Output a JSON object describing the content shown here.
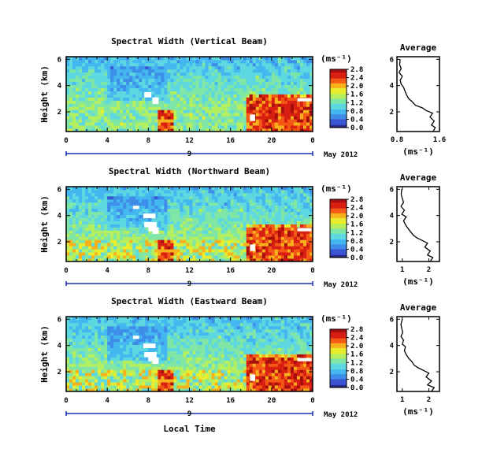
{
  "colors": {
    "colormap": [
      "#000000",
      "#2b2a8e",
      "#3a55d4",
      "#3e8de8",
      "#45b7f0",
      "#5ed8e0",
      "#7fe6a6",
      "#b4ef5f",
      "#e9ed2c",
      "#f7b11b",
      "#f45a16",
      "#d81f12",
      "#a90e0e"
    ],
    "axis_blue": "#1a2fb0",
    "frame": "#000000"
  },
  "xlabel": "Local Time",
  "date_label": "May 2012",
  "chart_data": [
    {
      "type": "heatmap",
      "title": "Spectral Width (Vertical Beam)",
      "ylabel": "Height (km)",
      "x_range": [
        0,
        24
      ],
      "x_ticks": [
        "0",
        "4",
        "8",
        "12",
        "16",
        "20",
        "0"
      ],
      "day_marker": "9",
      "y_range": [
        0.5,
        6.2
      ],
      "y_ticks": [
        {
          "v": 2,
          "t": "2"
        },
        {
          "v": 4,
          "t": "4"
        },
        {
          "v": 6,
          "t": "6"
        }
      ],
      "colorbar": {
        "unit": "(ms⁻¹)",
        "range": [
          0,
          2.8
        ],
        "ticks": [
          "0.0",
          "0.4",
          "0.8",
          "1.2",
          "1.6",
          "2.0",
          "2.4",
          "2.8"
        ]
      },
      "average": {
        "title": "Average",
        "xlabel": "(ms⁻¹)",
        "x_range": [
          0.8,
          1.6
        ],
        "x_ticks": [
          {
            "v": 0.8,
            "t": "0.8"
          },
          {
            "v": 1.6,
            "t": "1.6"
          }
        ],
        "heights": [
          0.5,
          0.8,
          1.0,
          1.3,
          1.6,
          1.9,
          2.1,
          2.3,
          2.5,
          2.8,
          3.0,
          3.3,
          3.6,
          3.9,
          4.1,
          4.4,
          4.7,
          5.0,
          5.3,
          5.6,
          6.0
        ],
        "values": [
          1.48,
          1.52,
          1.45,
          1.5,
          1.42,
          1.47,
          1.35,
          1.28,
          1.15,
          1.08,
          1.02,
          0.98,
          0.95,
          0.92,
          0.88,
          0.86,
          0.9,
          0.84,
          0.88,
          0.85,
          0.86
        ]
      }
    },
    {
      "type": "heatmap",
      "title": "Spectral Width (Northward Beam)",
      "ylabel": "Height (km)",
      "x_range": [
        0,
        24
      ],
      "x_ticks": [
        "0",
        "4",
        "8",
        "12",
        "16",
        "20",
        "0"
      ],
      "day_marker": "9",
      "y_range": [
        0.5,
        6.2
      ],
      "y_ticks": [
        {
          "v": 2,
          "t": "2"
        },
        {
          "v": 4,
          "t": "4"
        },
        {
          "v": 6,
          "t": "6"
        }
      ],
      "colorbar": {
        "unit": "(ms⁻¹)",
        "range": [
          0,
          2.8
        ],
        "ticks": [
          "0.0",
          "0.4",
          "0.8",
          "1.2",
          "1.6",
          "2.0",
          "2.4",
          "2.8"
        ]
      },
      "average": {
        "title": "Average",
        "xlabel": "(ms⁻¹)",
        "x_range": [
          0.8,
          2.4
        ],
        "x_ticks": [
          {
            "v": 1,
            "t": "1"
          },
          {
            "v": 2,
            "t": "2"
          }
        ],
        "heights": [
          0.5,
          0.8,
          1.0,
          1.3,
          1.6,
          1.9,
          2.1,
          2.3,
          2.5,
          2.8,
          3.0,
          3.3,
          3.6,
          3.9,
          4.1,
          4.4,
          4.7,
          5.0,
          5.3,
          5.6,
          6.0
        ],
        "values": [
          2.05,
          2.15,
          1.95,
          2.05,
          1.85,
          1.95,
          1.75,
          1.55,
          1.42,
          1.3,
          1.22,
          1.12,
          1.05,
          1.15,
          0.98,
          1.08,
          0.95,
          1.05,
          1.0,
          0.96,
          0.98
        ]
      }
    },
    {
      "type": "heatmap",
      "title": "Spectral Width (Eastward Beam)",
      "ylabel": "Height (km)",
      "x_range": [
        0,
        24
      ],
      "x_ticks": [
        "0",
        "4",
        "8",
        "12",
        "16",
        "20",
        "0"
      ],
      "day_marker": "9",
      "y_range": [
        0.5,
        6.2
      ],
      "y_ticks": [
        {
          "v": 2,
          "t": "2"
        },
        {
          "v": 4,
          "t": "4"
        },
        {
          "v": 6,
          "t": "6"
        }
      ],
      "colorbar": {
        "unit": "(ms⁻¹)",
        "range": [
          0,
          2.8
        ],
        "ticks": [
          "0.0",
          "0.4",
          "0.8",
          "1.2",
          "1.6",
          "2.0",
          "2.4",
          "2.8"
        ]
      },
      "average": {
        "title": "Average",
        "xlabel": "(ms⁻¹)",
        "x_range": [
          0.8,
          2.4
        ],
        "x_ticks": [
          {
            "v": 1,
            "t": "1"
          },
          {
            "v": 2,
            "t": "2"
          }
        ],
        "heights": [
          0.5,
          0.8,
          1.0,
          1.3,
          1.6,
          1.9,
          2.1,
          2.3,
          2.5,
          2.8,
          3.0,
          3.3,
          3.6,
          3.9,
          4.1,
          4.4,
          4.7,
          5.0,
          5.3,
          5.6,
          6.0
        ],
        "values": [
          2.1,
          2.2,
          1.95,
          2.1,
          1.9,
          2.0,
          1.8,
          1.6,
          1.45,
          1.35,
          1.25,
          1.15,
          1.08,
          1.12,
          1.0,
          1.05,
          0.95,
          1.02,
          0.98,
          0.95,
          1.0
        ]
      }
    }
  ]
}
